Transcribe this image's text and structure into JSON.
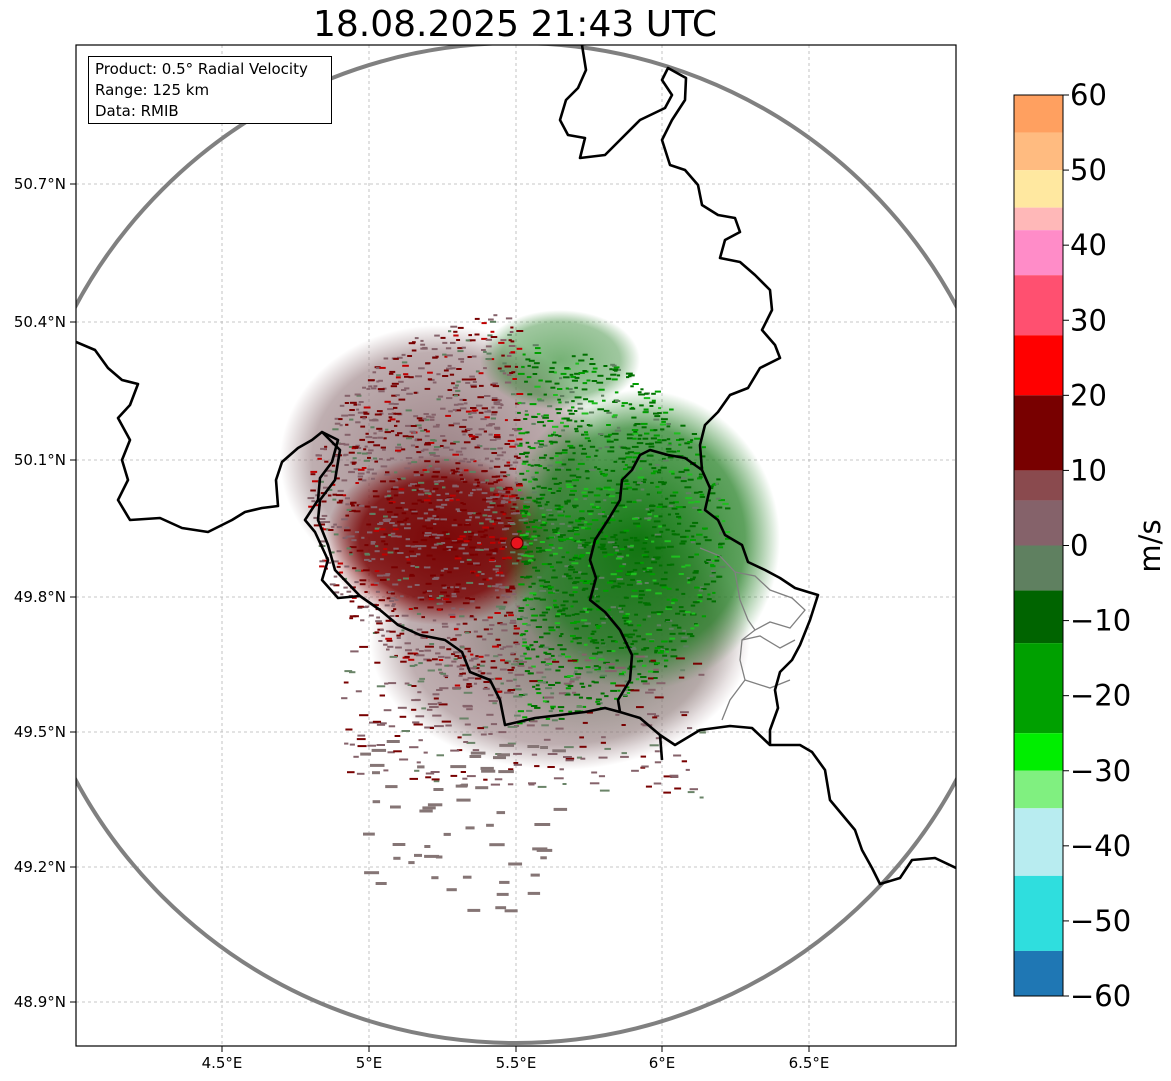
{
  "title": "18.08.2025 21:43 UTC",
  "info": {
    "product": "Product: 0.5° Radial Velocity",
    "range": "Range: 125 km",
    "source": "Data: RMIB"
  },
  "axes": {
    "lon_ticks": [
      "4.5°E",
      "5°E",
      "5.5°E",
      "6°E",
      "6.5°E"
    ],
    "lat_ticks": [
      "50.7°N",
      "50.4°N",
      "50.1°N",
      "49.8°N",
      "49.5°N",
      "49.2°N",
      "48.9°N"
    ]
  },
  "radar": {
    "lon": 5.505,
    "lat": 49.914,
    "marker_color": "#e8141e"
  },
  "colorbar": {
    "label": "m/s",
    "min": -60,
    "max": 60,
    "ticks": [
      "60",
      "50",
      "40",
      "30",
      "20",
      "10",
      "0",
      "−10",
      "−20",
      "−30",
      "−40",
      "−50",
      "−60"
    ],
    "colors": {
      "negative_far": "#1f77b4",
      "cyan": "#2fdede",
      "light_cyan": "#b8ecf0",
      "bright_green": "#00ee00",
      "dark_green": "#006400",
      "gray_green": "#5f8060",
      "gray_mauve": "#85626a",
      "dark_red": "#780000",
      "red": "#ff0000",
      "pink": "#ff8cc8",
      "light_yellow": "#ffe8a0",
      "orange": "#ffa060"
    }
  }
}
